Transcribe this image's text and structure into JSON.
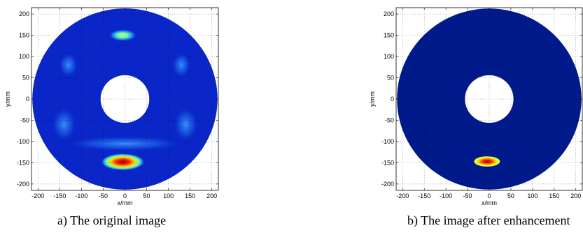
{
  "chart_data": [
    {
      "type": "heatmap",
      "caption": "a) The original image",
      "xlabel": "x/mm",
      "ylabel": "y/mm",
      "xlim": [
        -215,
        215
      ],
      "ylim": [
        -215,
        215
      ],
      "xticks": [
        -200,
        -150,
        -100,
        -50,
        0,
        50,
        100,
        150,
        200
      ],
      "yticks": [
        -200,
        -150,
        -100,
        -50,
        0,
        50,
        100,
        150,
        200
      ],
      "grid": "dotted",
      "annulus": {
        "inner_radius_mm": 56,
        "outer_radius_mm": 213
      },
      "background_color": "#0a26c8",
      "hotspots": [
        {
          "x": -5,
          "y": -148,
          "rx": 50,
          "ry": 20,
          "peak": "#b00000",
          "level": "max"
        },
        {
          "x": -5,
          "y": 150,
          "rx": 32,
          "ry": 14,
          "peak": "#c8ff5a",
          "level": "medium"
        },
        {
          "x": -140,
          "y": -60,
          "rx": 28,
          "ry": 40,
          "peak": "#2f8cff",
          "level": "low"
        },
        {
          "x": 140,
          "y": -60,
          "rx": 28,
          "ry": 40,
          "peak": "#2f8cff",
          "level": "low"
        },
        {
          "x": -130,
          "y": 80,
          "rx": 22,
          "ry": 30,
          "peak": "#1f6cf0",
          "level": "low"
        },
        {
          "x": 130,
          "y": 80,
          "rx": 22,
          "ry": 30,
          "peak": "#1f6cf0",
          "level": "low"
        },
        {
          "x": 0,
          "y": -105,
          "rx": 140,
          "ry": 18,
          "peak": "#1f6cf0",
          "level": "low"
        }
      ]
    },
    {
      "type": "heatmap",
      "caption": "b) The image after enhancement",
      "xlabel": "x/mm",
      "ylabel": "y/mm",
      "xlim": [
        -215,
        215
      ],
      "ylim": [
        -215,
        215
      ],
      "xticks": [
        -200,
        -150,
        -100,
        -50,
        0,
        50,
        100,
        150,
        200
      ],
      "yticks": [
        -200,
        -150,
        -100,
        -50,
        0,
        50,
        100,
        150,
        200
      ],
      "grid": "dotted",
      "annulus": {
        "inner_radius_mm": 56,
        "outer_radius_mm": 213
      },
      "background_color": "#001a8c",
      "hotspots": [
        {
          "x": -5,
          "y": -147,
          "rx": 30,
          "ry": 12,
          "peak": "#b00000",
          "level": "max"
        }
      ]
    }
  ]
}
